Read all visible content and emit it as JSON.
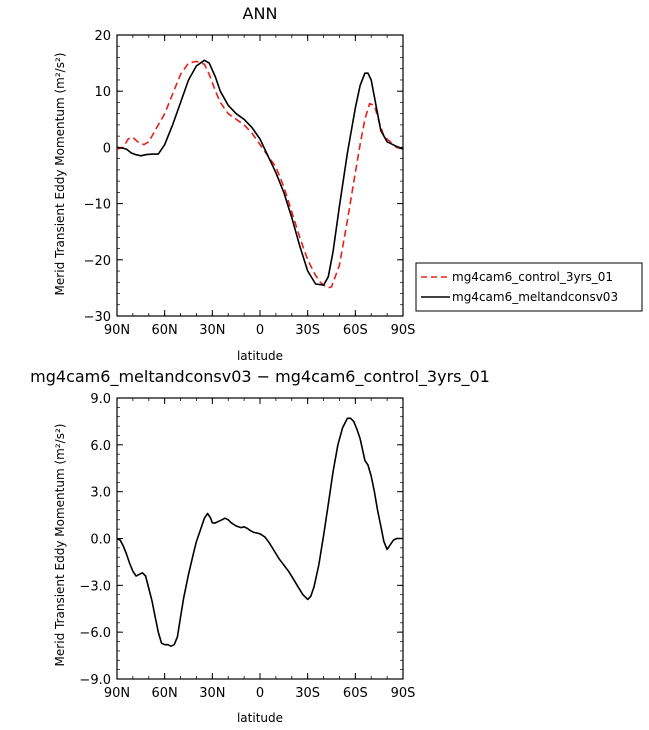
{
  "chart_data": [
    {
      "type": "line",
      "title": "ANN",
      "xlabel": "latitude",
      "ylabel": "Merid Transient Eddy Momentum (m²/s²)",
      "xlim": [
        90,
        -90
      ],
      "ylim": [
        -30,
        20
      ],
      "x_ticks": [
        90,
        60,
        30,
        0,
        -30,
        -60,
        -90
      ],
      "x_tick_labels": [
        "90N",
        "60N",
        "30N",
        "0",
        "30S",
        "60S",
        "90S"
      ],
      "y_ticks": [
        20,
        10,
        0,
        -10,
        -20,
        -30
      ],
      "y_tick_labels": [
        "20",
        "10",
        "0",
        "−10",
        "−20",
        "−30"
      ],
      "grid": false,
      "legend": "right",
      "series": [
        {
          "name": "mg4cam6_control_3yrs_01",
          "color": "#e8201a",
          "dash": "dashed",
          "x": [
            90,
            86,
            83,
            80,
            77,
            73,
            70,
            66,
            60,
            55,
            50,
            45,
            40,
            35,
            32,
            28,
            25,
            20,
            15,
            10,
            5,
            0,
            -5,
            -10,
            -15,
            -20,
            -25,
            -30,
            -35,
            -38,
            -40,
            -43,
            -45,
            -50,
            -55,
            -60,
            -63,
            -66,
            -69,
            -72,
            -75,
            -78,
            -82,
            -86,
            -90
          ],
          "y": [
            -0.3,
            0,
            1.5,
            1.8,
            1.0,
            0.5,
            1.0,
            3.0,
            6.0,
            9.5,
            13.0,
            15.0,
            15.3,
            14.8,
            13.0,
            10.0,
            8.0,
            6.0,
            5.0,
            4.0,
            2.5,
            0.5,
            -1.5,
            -3.5,
            -7.0,
            -11.5,
            -16.0,
            -20.0,
            -22.8,
            -24.0,
            -24.5,
            -25.0,
            -24.8,
            -21.0,
            -13.0,
            -4.5,
            0.5,
            5.0,
            7.8,
            7.5,
            4.5,
            2.0,
            1.0,
            0,
            -0.3
          ]
        },
        {
          "name": "mg4cam6_meltandconsv03",
          "color": "#000000",
          "dash": "solid",
          "x": [
            90,
            87,
            84,
            81,
            78,
            75,
            72,
            68,
            64,
            60,
            55,
            50,
            45,
            40,
            35,
            32,
            28,
            25,
            20,
            15,
            10,
            5,
            0,
            -5,
            -10,
            -15,
            -20,
            -25,
            -30,
            -35,
            -40,
            -43,
            -46,
            -50,
            -55,
            -60,
            -63,
            -66,
            -68,
            -70,
            -73,
            -76,
            -80,
            -85,
            -90
          ],
          "y": [
            0,
            -0.1,
            -0.3,
            -1.0,
            -1.3,
            -1.5,
            -1.3,
            -1.2,
            -1.2,
            0.5,
            4.0,
            8.0,
            12.0,
            14.5,
            15.5,
            15.0,
            12.5,
            10.0,
            7.5,
            6.0,
            5.0,
            3.5,
            1.5,
            -1.5,
            -4.5,
            -8.0,
            -12.5,
            -17.5,
            -22.0,
            -24.3,
            -24.5,
            -23.0,
            -18.5,
            -10.5,
            -1.0,
            7.0,
            11.0,
            13.2,
            13.2,
            12.0,
            7.5,
            3.0,
            1.0,
            0.3,
            -0.3
          ]
        }
      ]
    },
    {
      "type": "line",
      "title": "mg4cam6_meltandconsv03 − mg4cam6_control_3yrs_01",
      "xlabel": "latitude",
      "ylabel": "Merid Transient Eddy Momentum (m²/s²)",
      "xlim": [
        90,
        -90
      ],
      "ylim": [
        -9,
        9
      ],
      "x_ticks": [
        90,
        60,
        30,
        0,
        -30,
        -60,
        -90
      ],
      "x_tick_labels": [
        "90N",
        "60N",
        "30N",
        "0",
        "30S",
        "60S",
        "90S"
      ],
      "y_ticks": [
        9,
        6,
        3,
        0,
        -3,
        -6,
        -9
      ],
      "y_tick_labels": [
        "9.0",
        "6.0",
        "3.0",
        "0.0",
        "−3.0",
        "−6.0",
        "−9.0"
      ],
      "grid": false,
      "series": [
        {
          "color": "#000000",
          "dash": "solid",
          "x": [
            90,
            88,
            86,
            84,
            82,
            80,
            78,
            76,
            74,
            72,
            70,
            68,
            66,
            64,
            62,
            60,
            58,
            56,
            54,
            52,
            50,
            48,
            45,
            42,
            40,
            37,
            35,
            33,
            31,
            30,
            28,
            26,
            24,
            22,
            20,
            18,
            15,
            12,
            10,
            8,
            6,
            4,
            2,
            0,
            -3,
            -6,
            -9,
            -12,
            -15,
            -18,
            -21,
            -24,
            -27,
            -30,
            -32,
            -34,
            -37,
            -40,
            -43,
            -46,
            -49,
            -52,
            -55,
            -57,
            -59,
            -61,
            -63,
            -66,
            -68,
            -70,
            -72,
            -74,
            -76,
            -78,
            -80,
            -82,
            -84,
            -86,
            -88,
            -90
          ],
          "y": [
            0,
            -0.1,
            -0.5,
            -1.0,
            -1.6,
            -2.1,
            -2.4,
            -2.3,
            -2.2,
            -2.4,
            -3.2,
            -4.0,
            -5.0,
            -6.0,
            -6.7,
            -6.8,
            -6.8,
            -6.9,
            -6.8,
            -6.3,
            -5.0,
            -3.8,
            -2.3,
            -1.0,
            -0.2,
            0.7,
            1.3,
            1.6,
            1.3,
            1.0,
            1.0,
            1.1,
            1.2,
            1.3,
            1.2,
            1.0,
            0.8,
            0.7,
            0.75,
            0.65,
            0.5,
            0.4,
            0.35,
            0.3,
            0.1,
            -0.3,
            -0.8,
            -1.3,
            -1.7,
            -2.1,
            -2.6,
            -3.1,
            -3.6,
            -3.9,
            -3.7,
            -3.1,
            -1.7,
            0.2,
            2.2,
            4.3,
            6.0,
            7.1,
            7.7,
            7.7,
            7.5,
            7.0,
            6.4,
            5.0,
            4.7,
            4.0,
            3.0,
            1.8,
            0.8,
            -0.2,
            -0.7,
            -0.4,
            -0.1,
            0,
            0,
            0
          ]
        }
      ]
    }
  ]
}
